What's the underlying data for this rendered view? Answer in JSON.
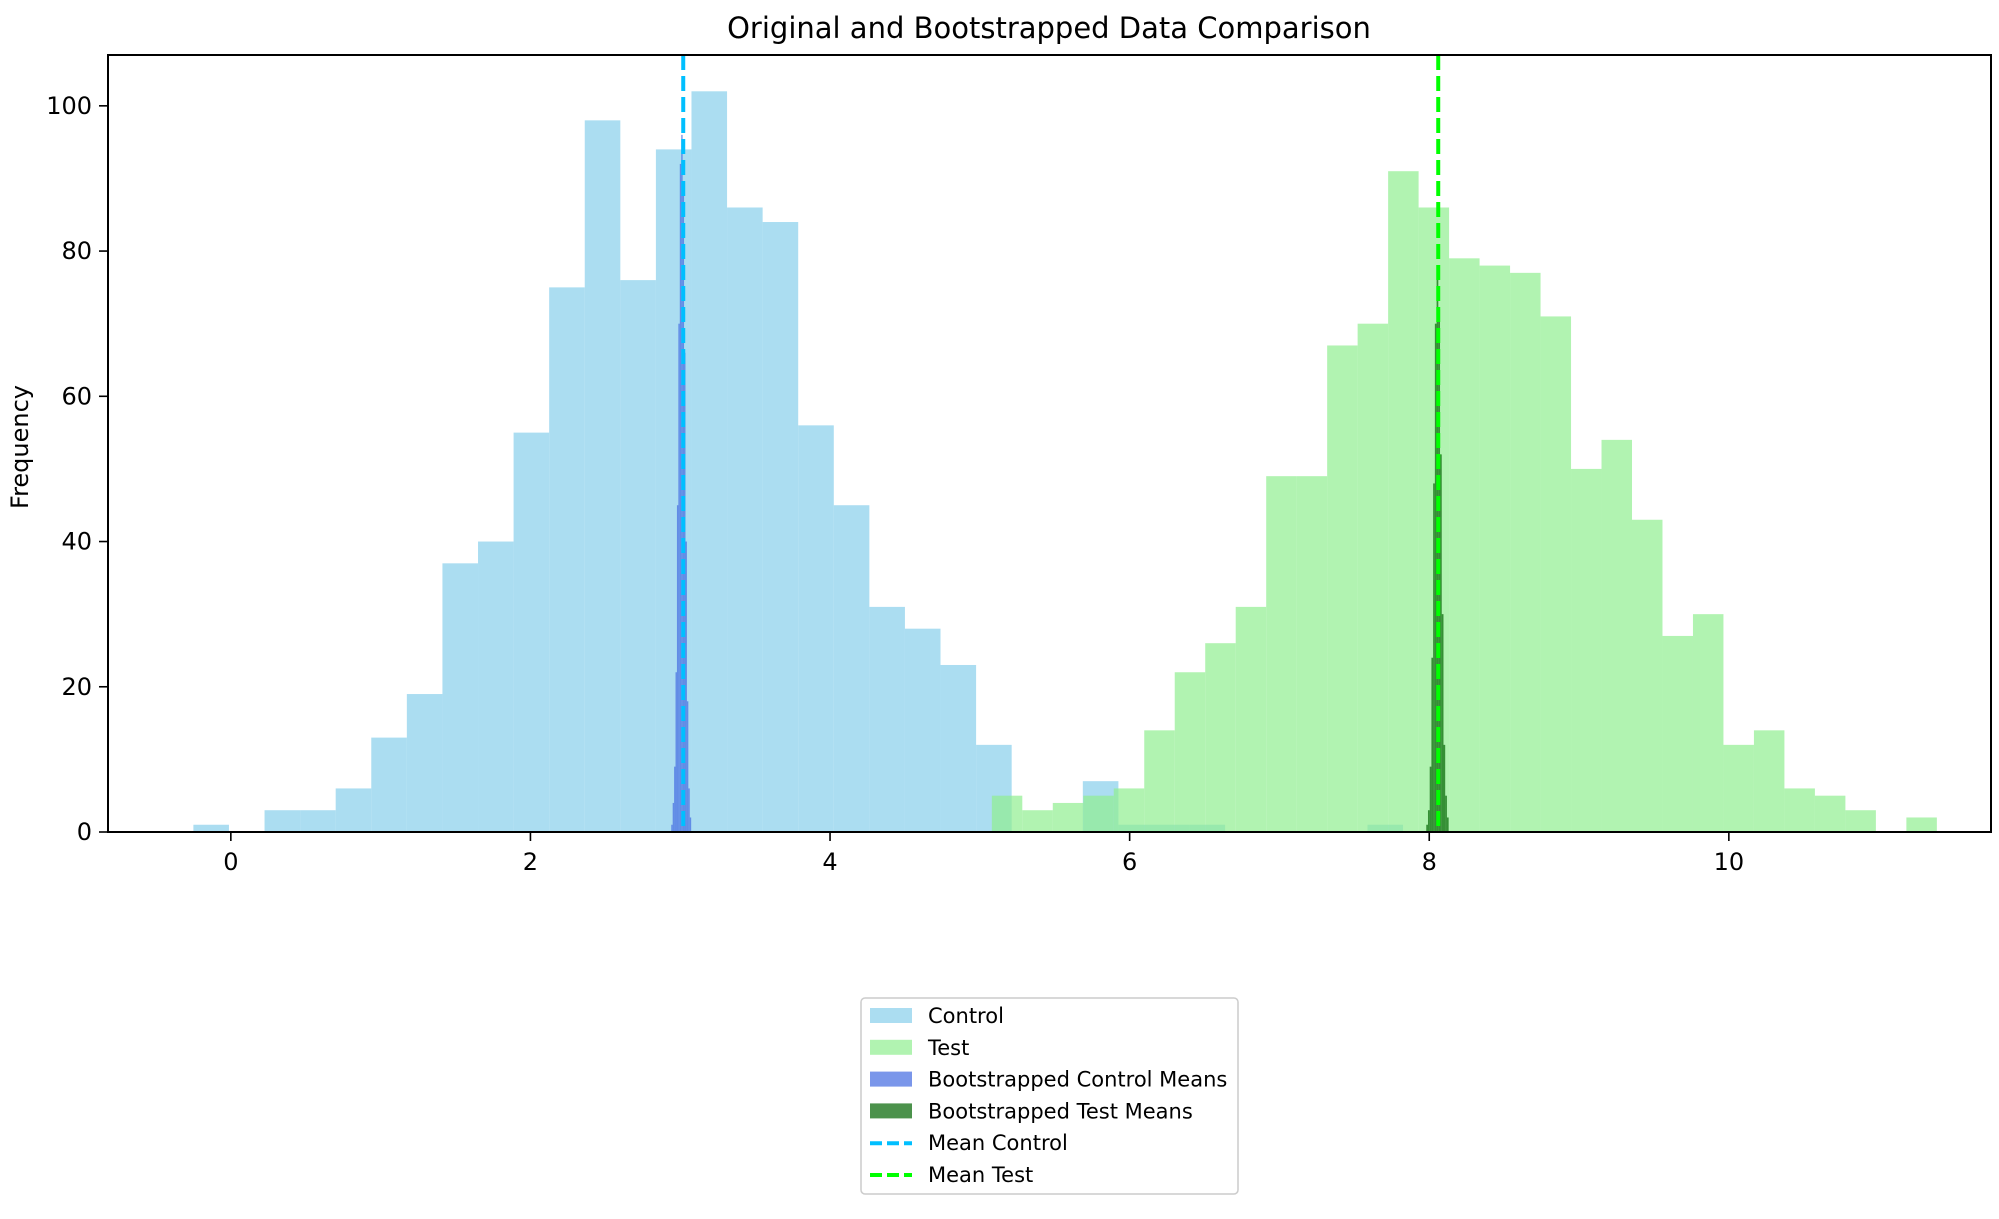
{
  "chart_data": {
    "type": "histogram",
    "title": "Original and Bootstrapped Data Comparison",
    "xlabel": "",
    "ylabel": "Frequency",
    "xlim": [
      -0.82,
      11.75
    ],
    "ylim": [
      0,
      107
    ],
    "xticks": [
      0,
      2,
      4,
      6,
      8,
      10
    ],
    "yticks": [
      0,
      20,
      40,
      60,
      80,
      100
    ],
    "grid": false,
    "legend_position": "below-center",
    "series": [
      {
        "name": "Control",
        "kind": "bars",
        "color": "#87ceeb",
        "opacity": 0.7,
        "bin_start": -0.25,
        "bin_width": 0.2375,
        "counts": [
          1,
          0,
          3,
          3,
          6,
          13,
          19,
          37,
          40,
          55,
          75,
          98,
          76,
          94,
          102,
          86,
          84,
          56,
          45,
          31,
          28,
          23,
          12,
          0,
          0,
          7,
          1,
          1,
          1,
          0,
          0,
          0,
          0,
          1
        ]
      },
      {
        "name": "Test",
        "kind": "bars",
        "color": "#90ee90",
        "opacity": 0.7,
        "bin_start": 5.08,
        "bin_width": 0.2035,
        "counts": [
          5,
          3,
          4,
          5,
          6,
          14,
          22,
          26,
          31,
          49,
          49,
          67,
          70,
          91,
          86,
          79,
          78,
          77,
          71,
          50,
          54,
          43,
          27,
          30,
          12,
          14,
          6,
          5,
          3,
          0,
          2
        ]
      },
      {
        "name": "Bootstrapped Control Means",
        "kind": "bars",
        "color": "#4169e1",
        "opacity": 0.7,
        "bin_start": 2.94,
        "bin_width": 0.0095,
        "counts": [
          1,
          4,
          9,
          22,
          45,
          70,
          92,
          96,
          88,
          66,
          40,
          18,
          6,
          2
        ]
      },
      {
        "name": "Bootstrapped Test Means",
        "kind": "bars",
        "color": "#006400",
        "opacity": 0.7,
        "bin_start": 7.98,
        "bin_width": 0.0115,
        "counts": [
          1,
          3,
          9,
          24,
          48,
          70,
          78,
          72,
          52,
          30,
          12,
          5,
          2
        ]
      },
      {
        "name": "Mean Control",
        "kind": "vline",
        "color": "#00bfff",
        "x": 3.02
      },
      {
        "name": "Mean Test",
        "kind": "vline",
        "color": "#00ff00",
        "x": 8.06
      }
    ]
  }
}
